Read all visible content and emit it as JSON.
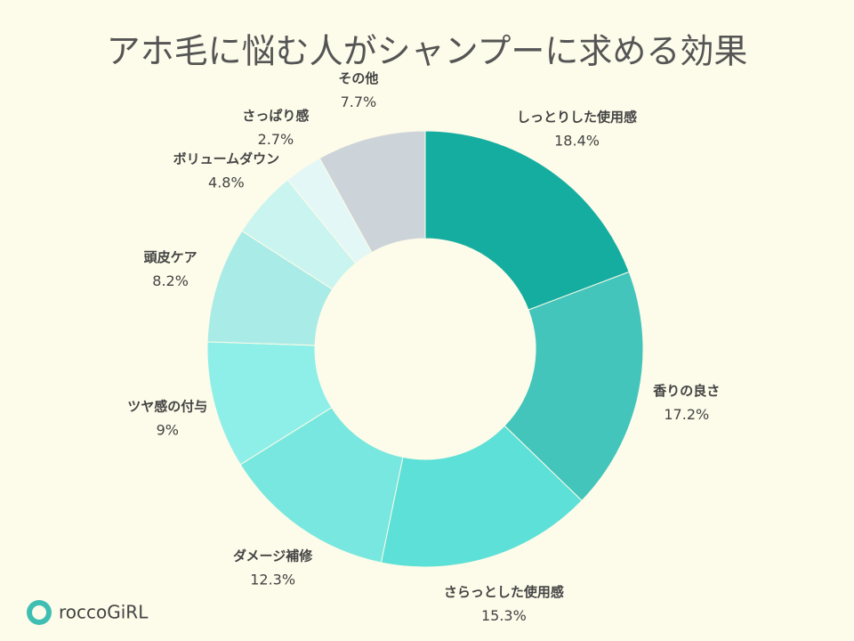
{
  "chart_data": {
    "type": "donut",
    "title": "アホ毛に悩む人がシャンプーに求める効果",
    "categories": [
      "しっとりした使用感",
      "香りの良さ",
      "さらっとした使用感",
      "ダメージ補修",
      "ツヤ感の付与",
      "頭皮ケア",
      "ボリュームダウン",
      "さっぱり感",
      "その他"
    ],
    "values": [
      18.4,
      17.2,
      15.3,
      12.3,
      9,
      8.2,
      4.8,
      2.7,
      7.7
    ],
    "value_labels": [
      "18.4%",
      "17.2%",
      "15.3%",
      "12.3%",
      "9%",
      "8.2%",
      "4.8%",
      "2.7%",
      "7.7%"
    ],
    "colors": [
      "#16ada1",
      "#43c5bc",
      "#5ce0d7",
      "#78e7df",
      "#8eefe9",
      "#a9ebe6",
      "#c9f4f0",
      "#e3f8f6",
      "#f6ffff",
      "#cdd4d9"
    ]
  },
  "logo": {
    "text": "roccoGiRL"
  }
}
